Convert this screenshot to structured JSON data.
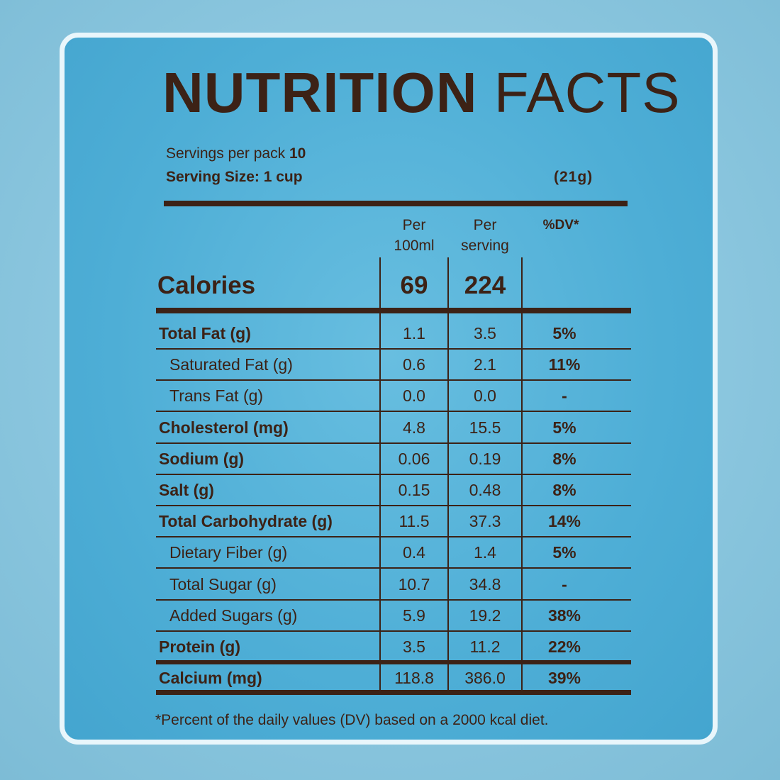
{
  "title": {
    "bold": "NUTRITION",
    "light": "FACTS"
  },
  "servings": {
    "per_pack_label": "Servings per pack",
    "per_pack_value": "10",
    "size_label": "Serving Size: 1 cup",
    "size_grams": "(21g)"
  },
  "columns": {
    "per100_line1": "Per",
    "per100_line2": "100ml",
    "perserving_line1": "Per",
    "perserving_line2": "serving",
    "dv": "%DV*"
  },
  "calories": {
    "label": "Calories",
    "per100": "69",
    "perserving": "224"
  },
  "rows": [
    {
      "label": "Total Fat (g)",
      "per100": "1.1",
      "perserving": "3.5",
      "dv": "5%"
    },
    {
      "label": "Saturated Fat (g)",
      "per100": "0.6",
      "perserving": "2.1",
      "dv": "11%"
    },
    {
      "label": "Trans Fat (g)",
      "per100": "0.0",
      "perserving": "0.0",
      "dv": "-"
    },
    {
      "label": "Cholesterol (mg)",
      "per100": "4.8",
      "perserving": "15.5",
      "dv": "5%"
    },
    {
      "label": "Sodium (g)",
      "per100": "0.06",
      "perserving": "0.19",
      "dv": "8%"
    },
    {
      "label": "Salt (g)",
      "per100": "0.15",
      "perserving": "0.48",
      "dv": "8%"
    },
    {
      "label": "Total Carbohydrate (g)",
      "per100": "11.5",
      "perserving": "37.3",
      "dv": "14%"
    },
    {
      "label": "Dietary Fiber (g)",
      "per100": "0.4",
      "perserving": "1.4",
      "dv": "5%"
    },
    {
      "label": "Total Sugar (g)",
      "per100": "10.7",
      "perserving": "34.8",
      "dv": "-"
    },
    {
      "label": "Added Sugars (g)",
      "per100": "5.9",
      "perserving": "19.2",
      "dv": "38%"
    },
    {
      "label": "Protein (g)",
      "per100": "3.5",
      "perserving": "11.2",
      "dv": "22%"
    },
    {
      "label": "Calcium (mg)",
      "per100": "118.8",
      "perserving": "386.0",
      "dv": "39%"
    }
  ],
  "footnote": "*Percent of the daily values (DV) based on a 2000 kcal diet.",
  "colors": {
    "text": "#3c2216",
    "panel": "#4eaed6",
    "border": "#e9f6fb",
    "background": "#8fc9e0"
  }
}
